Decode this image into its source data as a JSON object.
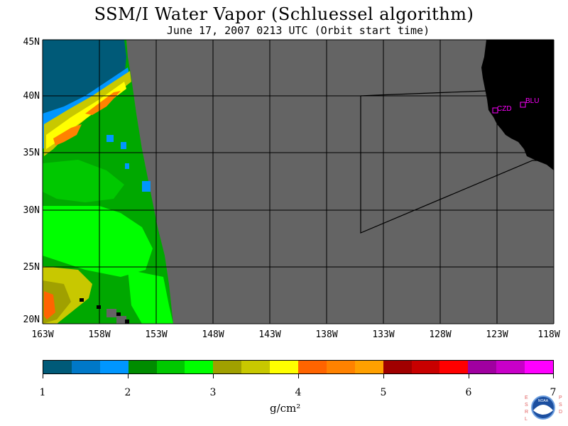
{
  "title": "SSM/I Water Vapor (Schluessel algorithm)",
  "subtitle": "June 17, 2007  0213 UTC  (Orbit start time)",
  "lat_labels": [
    "45N",
    "40N",
    "35N",
    "30N",
    "25N",
    "20N"
  ],
  "lon_labels": [
    "163W",
    "158W",
    "153W",
    "148W",
    "143W",
    "138W",
    "133W",
    "128W",
    "123W",
    "118W"
  ],
  "stations": [
    {
      "code": "CZD"
    },
    {
      "code": "BLU"
    }
  ],
  "colorbar": {
    "labels": [
      "1",
      "2",
      "3",
      "4",
      "5",
      "6",
      "7"
    ],
    "colors": [
      "#005a78",
      "#0078c8",
      "#0096ff",
      "#008c00",
      "#00c800",
      "#00ff00",
      "#a0a000",
      "#c8c800",
      "#ffff00",
      "#ff6400",
      "#ff8200",
      "#ffa000",
      "#a00000",
      "#c80000",
      "#ff0000",
      "#a000a0",
      "#c800c8",
      "#ff00ff"
    ],
    "units": "g/cm²"
  },
  "colors": {
    "ocean_nodata": "#646464",
    "land": "#000000",
    "grid": "#000000",
    "station": "#ff00ff"
  },
  "logo": {
    "left_text": "ESRL",
    "right_text": "PSD",
    "center_text": "NOAA"
  }
}
